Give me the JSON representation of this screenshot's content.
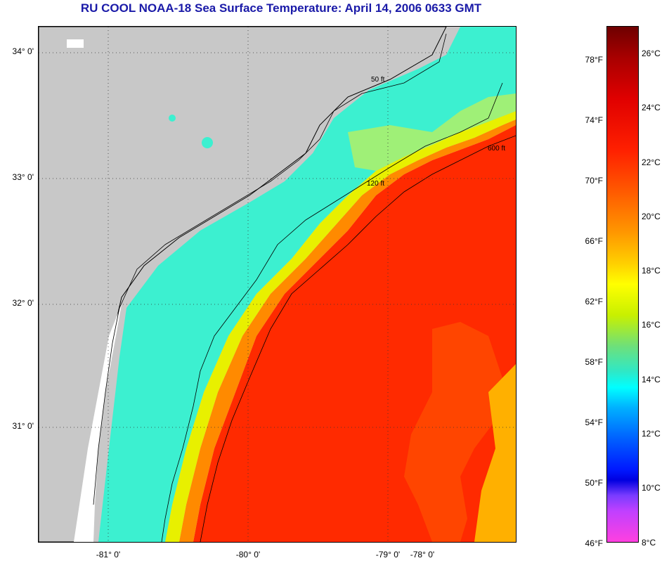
{
  "title": "RU COOL  NOAA-18  Sea Surface Temperature:  April 14, 2006 0633 GMT",
  "map": {
    "latitude_labels": [
      "34° 0'",
      "33° 0'",
      "32° 0'",
      "31° 0'"
    ],
    "longitude_labels": [
      "-81° 0'",
      "-80° 0'",
      "-79° 0'",
      "-78° 0'"
    ],
    "isobath_labels": [
      "50 ft",
      "120 ft",
      "600 ft"
    ],
    "colors": {
      "land": "#c8c8c8",
      "nodata": "#ffffff",
      "cool_water": "#3cf0d0",
      "warm_water": "#ff2a00",
      "contour": "#000000"
    }
  },
  "colorbar": {
    "fahrenheit_labels": [
      "78°F",
      "74°F",
      "70°F",
      "66°F",
      "62°F",
      "58°F",
      "54°F",
      "50°F",
      "46°F"
    ],
    "celsius_labels": [
      "26°C",
      "24°C",
      "22°C",
      "20°C",
      "18°C",
      "16°C",
      "14°C",
      "12°C",
      "10°C",
      "8°C"
    ]
  }
}
